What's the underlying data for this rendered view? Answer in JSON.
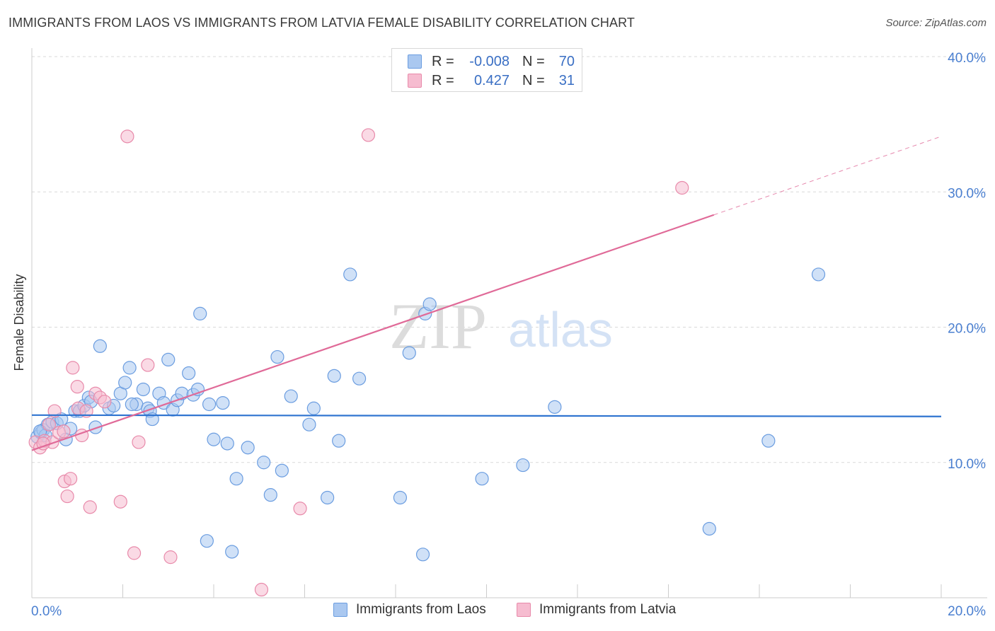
{
  "title": "IMMIGRANTS FROM LAOS VS IMMIGRANTS FROM LATVIA FEMALE DISABILITY CORRELATION CHART",
  "source": "Source: ZipAtlas.com",
  "watermark": {
    "zip": "ZIP",
    "atlas": "atlas"
  },
  "colors": {
    "blue_fill": "#aac8f0",
    "blue_stroke": "#6b9de0",
    "blue_line": "#2f74d0",
    "pink_fill": "#f6bcd0",
    "pink_stroke": "#e88aaa",
    "pink_line": "#e06a98",
    "grid": "#d9d9d9",
    "tick_text": "#4a7fd0"
  },
  "legend": {
    "rows": [
      {
        "r_label": "R =",
        "r_value": "-0.008",
        "n_label": "N =",
        "n_value": "70"
      },
      {
        "r_label": "R =",
        "r_value": "0.427",
        "n_label": "N =",
        "n_value": "31"
      }
    ]
  },
  "bottom_legend": {
    "laos": "Immigrants from Laos",
    "latvia": "Immigrants from Latvia"
  },
  "chart_data": {
    "type": "scatter",
    "title": "IMMIGRANTS FROM LAOS VS IMMIGRANTS FROM LATVIA FEMALE DISABILITY CORRELATION CHART",
    "xlabel": "",
    "ylabel": "Female Disability",
    "xlim": [
      0,
      20
    ],
    "ylim": [
      0,
      40
    ],
    "x_tick_labels": [
      "0.0%",
      "20.0%"
    ],
    "y_ticks": [
      10,
      20,
      30,
      40
    ],
    "y_tick_labels": [
      "10.0%",
      "20.0%",
      "30.0%",
      "40.0%"
    ],
    "grid": true,
    "series": [
      {
        "name": "Immigrants from Laos",
        "r": -0.008,
        "n": 70,
        "trend": {
          "x0": 0,
          "y0": 13.5,
          "x1": 20,
          "y1": 13.4,
          "dashed_from": null
        },
        "points": [
          [
            0.12,
            11.9
          ],
          [
            0.2,
            12.2
          ],
          [
            0.25,
            12.4
          ],
          [
            0.35,
            12.8
          ],
          [
            0.45,
            13.0
          ],
          [
            0.55,
            12.9
          ],
          [
            0.65,
            13.2
          ],
          [
            0.75,
            11.7
          ],
          [
            0.85,
            12.5
          ],
          [
            0.95,
            13.8
          ],
          [
            1.05,
            13.8
          ],
          [
            1.15,
            14.2
          ],
          [
            1.25,
            14.8
          ],
          [
            1.4,
            12.6
          ],
          [
            1.7,
            14.0
          ],
          [
            1.8,
            14.2
          ],
          [
            1.5,
            18.6
          ],
          [
            1.95,
            15.1
          ],
          [
            2.05,
            15.9
          ],
          [
            2.15,
            17.0
          ],
          [
            2.3,
            14.3
          ],
          [
            2.45,
            15.4
          ],
          [
            2.55,
            14.0
          ],
          [
            2.6,
            13.8
          ],
          [
            2.65,
            13.2
          ],
          [
            2.8,
            15.1
          ],
          [
            2.9,
            14.4
          ],
          [
            3.0,
            17.6
          ],
          [
            3.1,
            13.9
          ],
          [
            3.2,
            14.6
          ],
          [
            3.3,
            15.1
          ],
          [
            3.45,
            16.6
          ],
          [
            3.55,
            15.0
          ],
          [
            3.65,
            15.4
          ],
          [
            3.7,
            21.0
          ],
          [
            3.9,
            14.3
          ],
          [
            4.0,
            11.7
          ],
          [
            4.2,
            14.4
          ],
          [
            4.3,
            11.4
          ],
          [
            4.5,
            8.8
          ],
          [
            4.75,
            11.1
          ],
          [
            5.1,
            10.0
          ],
          [
            5.25,
            7.6
          ],
          [
            5.4,
            17.8
          ],
          [
            5.5,
            9.4
          ],
          [
            5.7,
            14.9
          ],
          [
            6.1,
            12.8
          ],
          [
            6.2,
            14.0
          ],
          [
            6.5,
            7.4
          ],
          [
            6.65,
            16.4
          ],
          [
            6.75,
            11.6
          ],
          [
            7.0,
            23.9
          ],
          [
            7.2,
            16.2
          ],
          [
            8.1,
            7.4
          ],
          [
            8.3,
            18.1
          ],
          [
            8.6,
            3.2
          ],
          [
            8.65,
            21.0
          ],
          [
            8.75,
            21.7
          ],
          [
            9.9,
            8.8
          ],
          [
            10.8,
            9.8
          ],
          [
            11.5,
            14.1
          ],
          [
            3.85,
            4.2
          ],
          [
            4.4,
            3.4
          ],
          [
            14.9,
            5.1
          ],
          [
            16.2,
            11.6
          ],
          [
            17.3,
            23.9
          ],
          [
            2.2,
            14.3
          ],
          [
            1.3,
            14.5
          ],
          [
            0.3,
            12.0
          ],
          [
            0.18,
            12.3
          ]
        ]
      },
      {
        "name": "Immigrants from Latvia",
        "r": 0.427,
        "n": 31,
        "trend": {
          "x0": 0,
          "y0": 10.9,
          "x1": 20,
          "y1": 34.1,
          "dashed_from": 15.0
        },
        "points": [
          [
            0.08,
            11.5
          ],
          [
            0.18,
            11.1
          ],
          [
            0.28,
            11.6
          ],
          [
            0.38,
            12.8
          ],
          [
            0.45,
            11.5
          ],
          [
            0.5,
            13.8
          ],
          [
            0.6,
            12.2
          ],
          [
            0.7,
            12.3
          ],
          [
            0.72,
            8.6
          ],
          [
            0.78,
            7.5
          ],
          [
            0.85,
            8.8
          ],
          [
            0.9,
            17.0
          ],
          [
            1.0,
            15.6
          ],
          [
            1.02,
            14.0
          ],
          [
            1.1,
            12.0
          ],
          [
            1.2,
            13.8
          ],
          [
            1.28,
            6.7
          ],
          [
            1.4,
            15.1
          ],
          [
            1.5,
            14.8
          ],
          [
            1.6,
            14.5
          ],
          [
            1.95,
            7.1
          ],
          [
            2.1,
            34.1
          ],
          [
            2.25,
            3.3
          ],
          [
            2.35,
            11.5
          ],
          [
            2.55,
            17.2
          ],
          [
            3.05,
            3.0
          ],
          [
            5.05,
            0.6
          ],
          [
            5.9,
            6.6
          ],
          [
            7.4,
            34.2
          ],
          [
            14.3,
            30.3
          ],
          [
            0.25,
            11.4
          ]
        ]
      }
    ]
  }
}
